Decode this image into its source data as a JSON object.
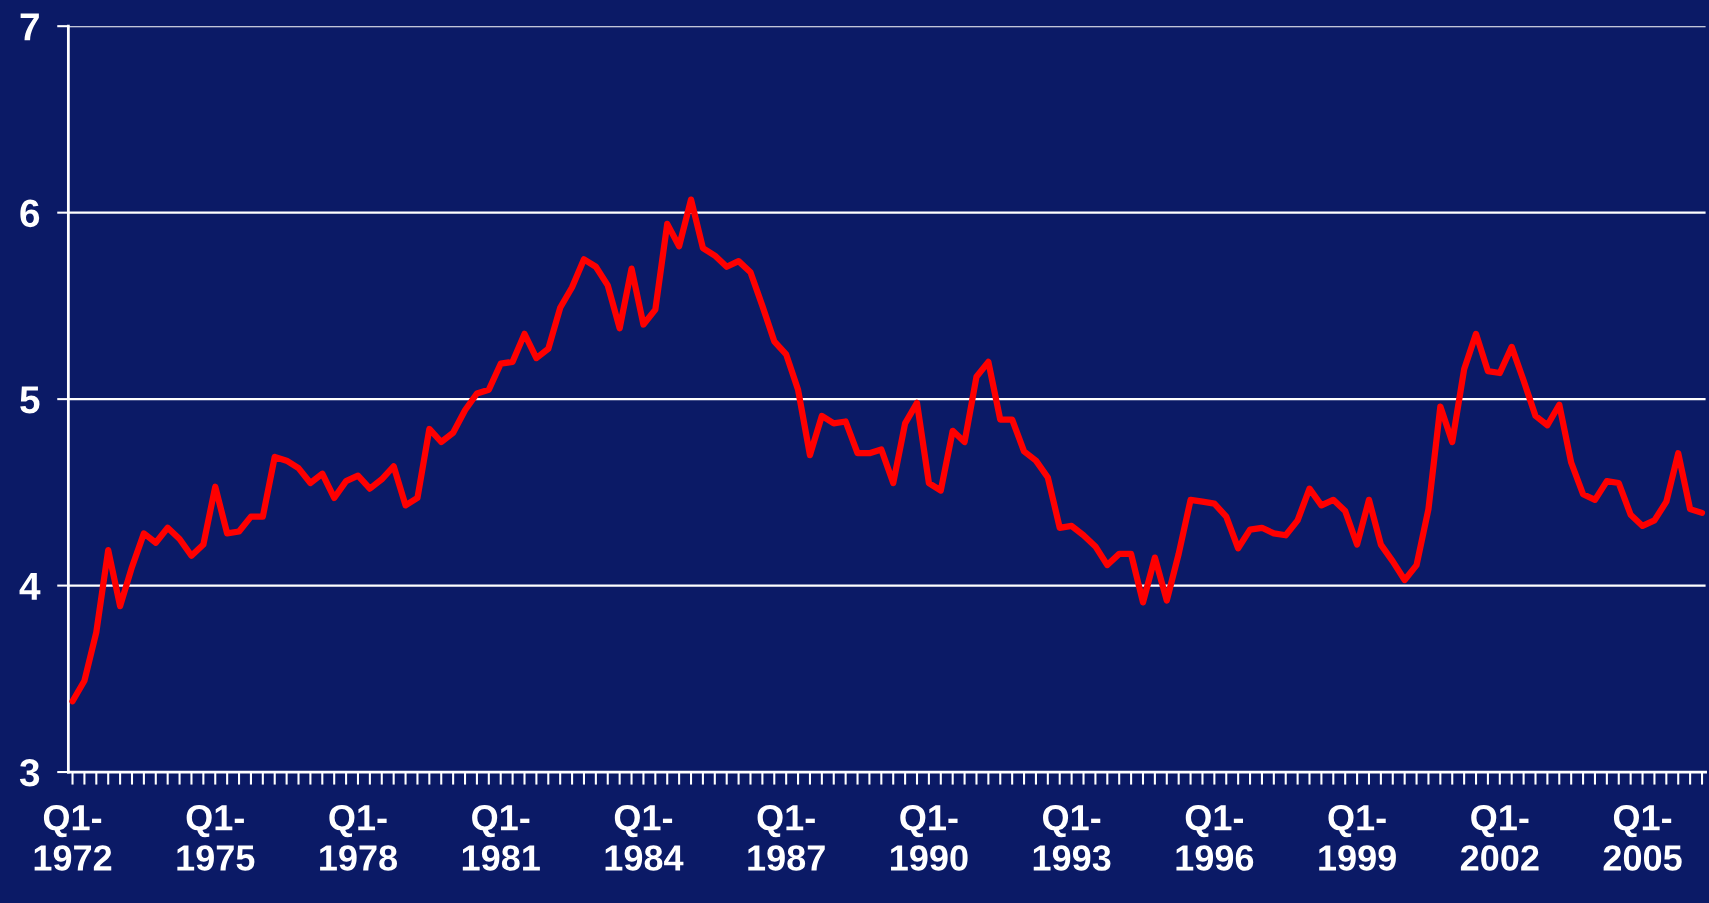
{
  "chart_data": {
    "type": "line",
    "categories": [
      "Q1-\n1972",
      null,
      null,
      null,
      null,
      null,
      null,
      null,
      null,
      null,
      null,
      null,
      "Q1-\n1975",
      null,
      null,
      null,
      null,
      null,
      null,
      null,
      null,
      null,
      null,
      null,
      "Q1-\n1978",
      null,
      null,
      null,
      null,
      null,
      null,
      null,
      null,
      null,
      null,
      null,
      "Q1-\n1981",
      null,
      null,
      null,
      null,
      null,
      null,
      null,
      null,
      null,
      null,
      null,
      "Q1-\n1984",
      null,
      null,
      null,
      null,
      null,
      null,
      null,
      null,
      null,
      null,
      null,
      "Q1-\n1987",
      null,
      null,
      null,
      null,
      null,
      null,
      null,
      null,
      null,
      null,
      null,
      "Q1-\n1990",
      null,
      null,
      null,
      null,
      null,
      null,
      null,
      null,
      null,
      null,
      null,
      "Q1-\n1993",
      null,
      null,
      null,
      null,
      null,
      null,
      null,
      null,
      null,
      null,
      null,
      "Q1-\n1996",
      null,
      null,
      null,
      null,
      null,
      null,
      null,
      null,
      null,
      null,
      null,
      "Q1-\n1999",
      null,
      null,
      null,
      null,
      null,
      null,
      null,
      null,
      null,
      null,
      null,
      "Q1-\n2002",
      null,
      null,
      null,
      null,
      null,
      null,
      null,
      null,
      null,
      null,
      null,
      "Q1-\n2005",
      null,
      null,
      null,
      null,
      null
    ],
    "series": [
      {
        "color": "#ff0000",
        "values": [
          3.38,
          3.49,
          3.75,
          4.19,
          3.89,
          4.1,
          4.28,
          4.23,
          4.31,
          4.25,
          4.16,
          4.22,
          4.53,
          4.28,
          4.29,
          4.37,
          4.37,
          4.69,
          4.67,
          4.63,
          4.55,
          4.6,
          4.47,
          4.56,
          4.59,
          4.52,
          4.57,
          4.64,
          4.43,
          4.47,
          4.84,
          4.77,
          4.82,
          4.94,
          5.03,
          5.05,
          5.19,
          5.2,
          5.35,
          5.22,
          5.27,
          5.49,
          5.6,
          5.75,
          5.71,
          5.61,
          5.38,
          5.7,
          5.4,
          5.48,
          5.94,
          5.82,
          6.07,
          5.81,
          5.77,
          5.71,
          5.74,
          5.68,
          5.5,
          5.31,
          5.24,
          5.05,
          4.7,
          4.91,
          4.87,
          4.88,
          4.71,
          4.71,
          4.73,
          4.55,
          4.87,
          4.98,
          4.55,
          4.51,
          4.83,
          4.77,
          5.12,
          5.2,
          4.89,
          4.89,
          4.72,
          4.67,
          4.58,
          4.31,
          4.32,
          4.27,
          4.21,
          4.11,
          4.17,
          4.17,
          3.91,
          4.15,
          3.92,
          4.17,
          4.46,
          4.45,
          4.44,
          4.37,
          4.2,
          4.3,
          4.31,
          4.28,
          4.27,
          4.35,
          4.52,
          4.43,
          4.46,
          4.4,
          4.22,
          4.46,
          4.22,
          4.13,
          4.03,
          4.11,
          4.41,
          4.96,
          4.77,
          5.16,
          5.35,
          5.15,
          5.14,
          5.28,
          5.1,
          4.91,
          4.86,
          4.97,
          4.66,
          4.49,
          4.46,
          4.56,
          4.55,
          4.38,
          4.32,
          4.35,
          4.45,
          4.71,
          4.41,
          4.39
        ]
      }
    ],
    "ylim": [
      3,
      7
    ],
    "yticks": [
      3,
      4,
      5,
      6,
      7
    ],
    "grid": "y"
  }
}
